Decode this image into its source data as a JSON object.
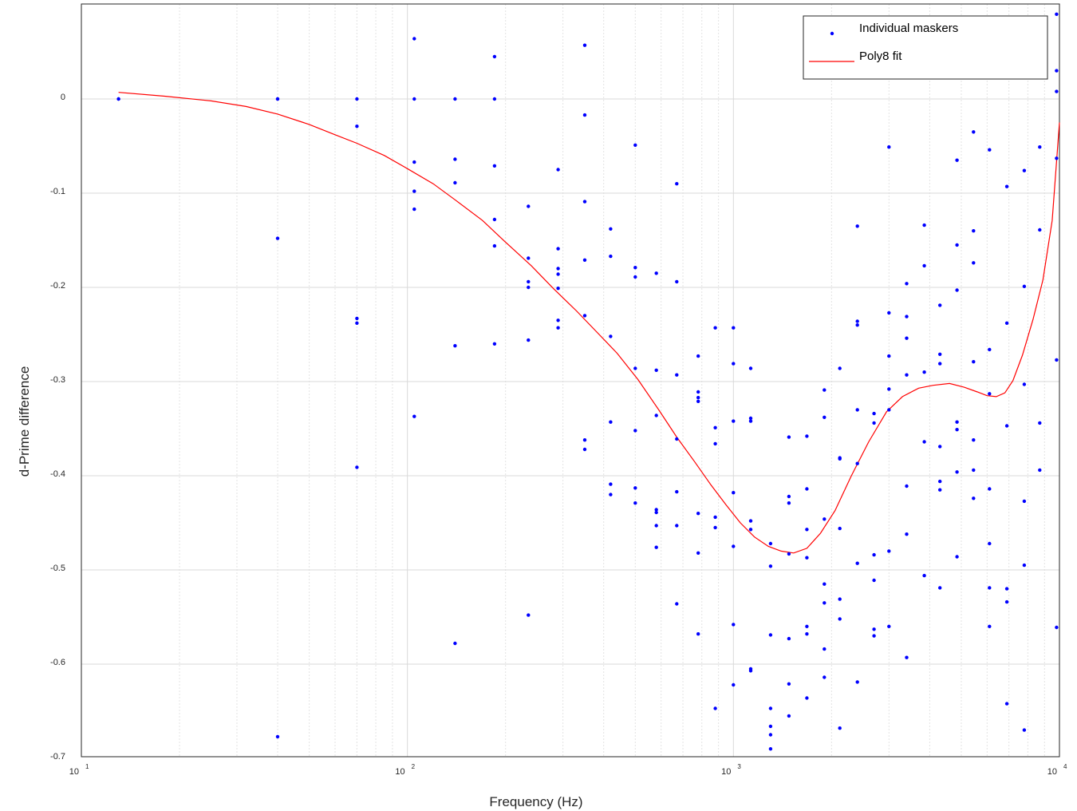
{
  "chart_data": {
    "type": "scatter",
    "xlabel": "Frequency (Hz)",
    "ylabel": "d-Prime difference",
    "xscale": "log",
    "xlim": [
      10,
      10000
    ],
    "ylim": [
      -0.7,
      0.1
    ],
    "grid": true,
    "legend_position": "top-right",
    "x_ticks": [
      {
        "base": "10",
        "exp": "1"
      },
      {
        "base": "10",
        "exp": "2"
      },
      {
        "base": "10",
        "exp": "3"
      },
      {
        "base": "10",
        "exp": "4"
      }
    ],
    "y_ticks": [
      {
        "value": 0,
        "label": "0"
      },
      {
        "value": -0.1,
        "label": "-0.1"
      },
      {
        "value": -0.2,
        "label": "-0.2"
      },
      {
        "value": -0.3,
        "label": "-0.3"
      },
      {
        "value": -0.4,
        "label": "-0.4"
      },
      {
        "value": -0.5,
        "label": "-0.5"
      },
      {
        "value": -0.6,
        "label": "-0.6"
      },
      {
        "value": -0.7,
        "label": "-0.7"
      }
    ],
    "series": [
      {
        "name": "Individual maskers",
        "kind": "scatter",
        "color": "#0000ff",
        "points": [
          [
            13,
            0.0
          ],
          [
            13,
            0.0
          ],
          [
            40,
            0.0
          ],
          [
            40,
            0.0
          ],
          [
            40,
            -0.148
          ],
          [
            40,
            -0.677
          ],
          [
            70,
            0.0
          ],
          [
            70,
            -0.029
          ],
          [
            70,
            -0.233
          ],
          [
            70,
            -0.238
          ],
          [
            70,
            -0.391
          ],
          [
            105,
            0.064
          ],
          [
            105,
            0.0
          ],
          [
            105,
            -0.067
          ],
          [
            105,
            -0.098
          ],
          [
            105,
            -0.117
          ],
          [
            105,
            -0.337
          ],
          [
            140,
            0.0
          ],
          [
            140,
            -0.064
          ],
          [
            140,
            -0.089
          ],
          [
            140,
            -0.262
          ],
          [
            140,
            -0.578
          ],
          [
            185,
            0.045
          ],
          [
            185,
            0.0
          ],
          [
            185,
            -0.071
          ],
          [
            185,
            -0.128
          ],
          [
            185,
            -0.156
          ],
          [
            185,
            -0.26
          ],
          [
            235,
            -0.114
          ],
          [
            235,
            -0.169
          ],
          [
            235,
            -0.194
          ],
          [
            235,
            -0.2
          ],
          [
            235,
            -0.256
          ],
          [
            235,
            -0.548
          ],
          [
            290,
            -0.075
          ],
          [
            290,
            -0.159
          ],
          [
            290,
            -0.18
          ],
          [
            290,
            -0.186
          ],
          [
            290,
            -0.201
          ],
          [
            290,
            -0.235
          ],
          [
            290,
            -0.243
          ],
          [
            350,
            0.057
          ],
          [
            350,
            -0.017
          ],
          [
            350,
            -0.109
          ],
          [
            350,
            -0.171
          ],
          [
            350,
            -0.23
          ],
          [
            350,
            -0.362
          ],
          [
            350,
            -0.372
          ],
          [
            420,
            -0.138
          ],
          [
            420,
            -0.167
          ],
          [
            420,
            -0.252
          ],
          [
            420,
            -0.343
          ],
          [
            420,
            -0.409
          ],
          [
            420,
            -0.42
          ],
          [
            500,
            -0.049
          ],
          [
            500,
            -0.179
          ],
          [
            500,
            -0.189
          ],
          [
            500,
            -0.286
          ],
          [
            500,
            -0.352
          ],
          [
            500,
            -0.413
          ],
          [
            500,
            -0.429
          ],
          [
            580,
            -0.185
          ],
          [
            580,
            -0.288
          ],
          [
            580,
            -0.336
          ],
          [
            580,
            -0.436
          ],
          [
            580,
            -0.439
          ],
          [
            580,
            -0.453
          ],
          [
            580,
            -0.476
          ],
          [
            670,
            -0.09
          ],
          [
            670,
            -0.194
          ],
          [
            670,
            -0.293
          ],
          [
            670,
            -0.361
          ],
          [
            670,
            -0.417
          ],
          [
            670,
            -0.453
          ],
          [
            670,
            -0.536
          ],
          [
            780,
            -0.273
          ],
          [
            780,
            -0.311
          ],
          [
            780,
            -0.317
          ],
          [
            780,
            -0.321
          ],
          [
            780,
            -0.44
          ],
          [
            780,
            -0.482
          ],
          [
            780,
            -0.568
          ],
          [
            880,
            -0.243
          ],
          [
            880,
            -0.349
          ],
          [
            880,
            -0.366
          ],
          [
            880,
            -0.444
          ],
          [
            880,
            -0.455
          ],
          [
            880,
            -0.647
          ],
          [
            1000,
            -0.243
          ],
          [
            1000,
            -0.281
          ],
          [
            1000,
            -0.342
          ],
          [
            1000,
            -0.418
          ],
          [
            1000,
            -0.475
          ],
          [
            1000,
            -0.558
          ],
          [
            1000,
            -0.622
          ],
          [
            1130,
            -0.286
          ],
          [
            1130,
            -0.339
          ],
          [
            1130,
            -0.342
          ],
          [
            1130,
            -0.448
          ],
          [
            1130,
            -0.457
          ],
          [
            1130,
            -0.605
          ],
          [
            1130,
            -0.607
          ],
          [
            1300,
            -0.472
          ],
          [
            1300,
            -0.496
          ],
          [
            1300,
            -0.569
          ],
          [
            1300,
            -0.647
          ],
          [
            1300,
            -0.666
          ],
          [
            1300,
            -0.675
          ],
          [
            1300,
            -0.69
          ],
          [
            1480,
            -0.359
          ],
          [
            1480,
            -0.422
          ],
          [
            1480,
            -0.429
          ],
          [
            1480,
            -0.483
          ],
          [
            1480,
            -0.573
          ],
          [
            1480,
            -0.621
          ],
          [
            1480,
            -0.655
          ],
          [
            1680,
            -0.358
          ],
          [
            1680,
            -0.414
          ],
          [
            1680,
            -0.457
          ],
          [
            1680,
            -0.487
          ],
          [
            1680,
            -0.56
          ],
          [
            1680,
            -0.568
          ],
          [
            1680,
            -0.636
          ],
          [
            1900,
            -0.309
          ],
          [
            1900,
            -0.338
          ],
          [
            1900,
            -0.446
          ],
          [
            1900,
            -0.515
          ],
          [
            1900,
            -0.535
          ],
          [
            1900,
            -0.584
          ],
          [
            1900,
            -0.614
          ],
          [
            2120,
            -0.286
          ],
          [
            2120,
            -0.381
          ],
          [
            2120,
            -0.382
          ],
          [
            2120,
            -0.456
          ],
          [
            2120,
            -0.531
          ],
          [
            2120,
            -0.552
          ],
          [
            2120,
            -0.668
          ],
          [
            2400,
            -0.135
          ],
          [
            2400,
            -0.236
          ],
          [
            2400,
            -0.24
          ],
          [
            2400,
            -0.33
          ],
          [
            2400,
            -0.387
          ],
          [
            2400,
            -0.493
          ],
          [
            2400,
            -0.619
          ],
          [
            2700,
            -0.334
          ],
          [
            2700,
            -0.344
          ],
          [
            2700,
            -0.484
          ],
          [
            2700,
            -0.511
          ],
          [
            2700,
            -0.563
          ],
          [
            2700,
            -0.57
          ],
          [
            3000,
            -0.051
          ],
          [
            3000,
            -0.227
          ],
          [
            3000,
            -0.273
          ],
          [
            3000,
            -0.308
          ],
          [
            3000,
            -0.33
          ],
          [
            3000,
            -0.48
          ],
          [
            3000,
            -0.56
          ],
          [
            3400,
            -0.196
          ],
          [
            3400,
            -0.231
          ],
          [
            3400,
            -0.254
          ],
          [
            3400,
            -0.293
          ],
          [
            3400,
            -0.411
          ],
          [
            3400,
            -0.462
          ],
          [
            3400,
            -0.593
          ],
          [
            3850,
            -0.134
          ],
          [
            3850,
            -0.177
          ],
          [
            3850,
            -0.29
          ],
          [
            3850,
            -0.364
          ],
          [
            3850,
            -0.506
          ],
          [
            4300,
            -0.219
          ],
          [
            4300,
            -0.271
          ],
          [
            4300,
            -0.281
          ],
          [
            4300,
            -0.369
          ],
          [
            4300,
            -0.406
          ],
          [
            4300,
            -0.415
          ],
          [
            4300,
            -0.519
          ],
          [
            4850,
            -0.065
          ],
          [
            4850,
            -0.155
          ],
          [
            4850,
            -0.203
          ],
          [
            4850,
            -0.343
          ],
          [
            4850,
            -0.351
          ],
          [
            4850,
            -0.396
          ],
          [
            4850,
            -0.486
          ],
          [
            5450,
            -0.035
          ],
          [
            5450,
            -0.14
          ],
          [
            5450,
            -0.174
          ],
          [
            5450,
            -0.279
          ],
          [
            5450,
            -0.362
          ],
          [
            5450,
            -0.394
          ],
          [
            5450,
            -0.424
          ],
          [
            6100,
            -0.054
          ],
          [
            6100,
            -0.266
          ],
          [
            6100,
            -0.313
          ],
          [
            6100,
            -0.414
          ],
          [
            6100,
            -0.472
          ],
          [
            6100,
            -0.519
          ],
          [
            6100,
            -0.56
          ],
          [
            6900,
            -0.093
          ],
          [
            6900,
            -0.238
          ],
          [
            6900,
            -0.347
          ],
          [
            6900,
            -0.52
          ],
          [
            6900,
            -0.534
          ],
          [
            6900,
            -0.642
          ],
          [
            7800,
            -0.076
          ],
          [
            7800,
            -0.199
          ],
          [
            7800,
            -0.303
          ],
          [
            7800,
            -0.427
          ],
          [
            7800,
            -0.495
          ],
          [
            7800,
            -0.67
          ],
          [
            8700,
            -0.051
          ],
          [
            8700,
            -0.139
          ],
          [
            8700,
            -0.344
          ],
          [
            8700,
            -0.394
          ],
          [
            9800,
            0.09
          ],
          [
            9800,
            0.03
          ],
          [
            9800,
            0.008
          ],
          [
            9800,
            -0.063
          ],
          [
            9800,
            -0.277
          ],
          [
            9800,
            -0.561
          ]
        ]
      },
      {
        "name": "Poly8 fit",
        "kind": "line",
        "color": "#ff0000",
        "points": [
          [
            13,
            0.007
          ],
          [
            18,
            0.003
          ],
          [
            25,
            -0.002
          ],
          [
            32,
            -0.008
          ],
          [
            40,
            -0.016
          ],
          [
            50,
            -0.027
          ],
          [
            60,
            -0.038
          ],
          [
            70,
            -0.047
          ],
          [
            85,
            -0.06
          ],
          [
            100,
            -0.074
          ],
          [
            120,
            -0.09
          ],
          [
            140,
            -0.107
          ],
          [
            170,
            -0.129
          ],
          [
            200,
            -0.152
          ],
          [
            240,
            -0.177
          ],
          [
            280,
            -0.201
          ],
          [
            330,
            -0.225
          ],
          [
            380,
            -0.247
          ],
          [
            440,
            -0.27
          ],
          [
            510,
            -0.298
          ],
          [
            590,
            -0.33
          ],
          [
            670,
            -0.359
          ],
          [
            760,
            -0.385
          ],
          [
            850,
            -0.409
          ],
          [
            950,
            -0.431
          ],
          [
            1050,
            -0.45
          ],
          [
            1160,
            -0.465
          ],
          [
            1280,
            -0.475
          ],
          [
            1400,
            -0.48
          ],
          [
            1530,
            -0.482
          ],
          [
            1680,
            -0.477
          ],
          [
            1850,
            -0.461
          ],
          [
            2050,
            -0.437
          ],
          [
            2300,
            -0.4
          ],
          [
            2600,
            -0.364
          ],
          [
            2950,
            -0.332
          ],
          [
            3300,
            -0.316
          ],
          [
            3700,
            -0.307
          ],
          [
            4100,
            -0.304
          ],
          [
            4600,
            -0.302
          ],
          [
            5100,
            -0.306
          ],
          [
            5600,
            -0.311
          ],
          [
            6000,
            -0.315
          ],
          [
            6400,
            -0.316
          ],
          [
            6800,
            -0.312
          ],
          [
            7200,
            -0.299
          ],
          [
            7700,
            -0.272
          ],
          [
            8300,
            -0.234
          ],
          [
            8900,
            -0.192
          ],
          [
            9500,
            -0.129
          ],
          [
            10000,
            -0.025
          ]
        ]
      }
    ]
  }
}
